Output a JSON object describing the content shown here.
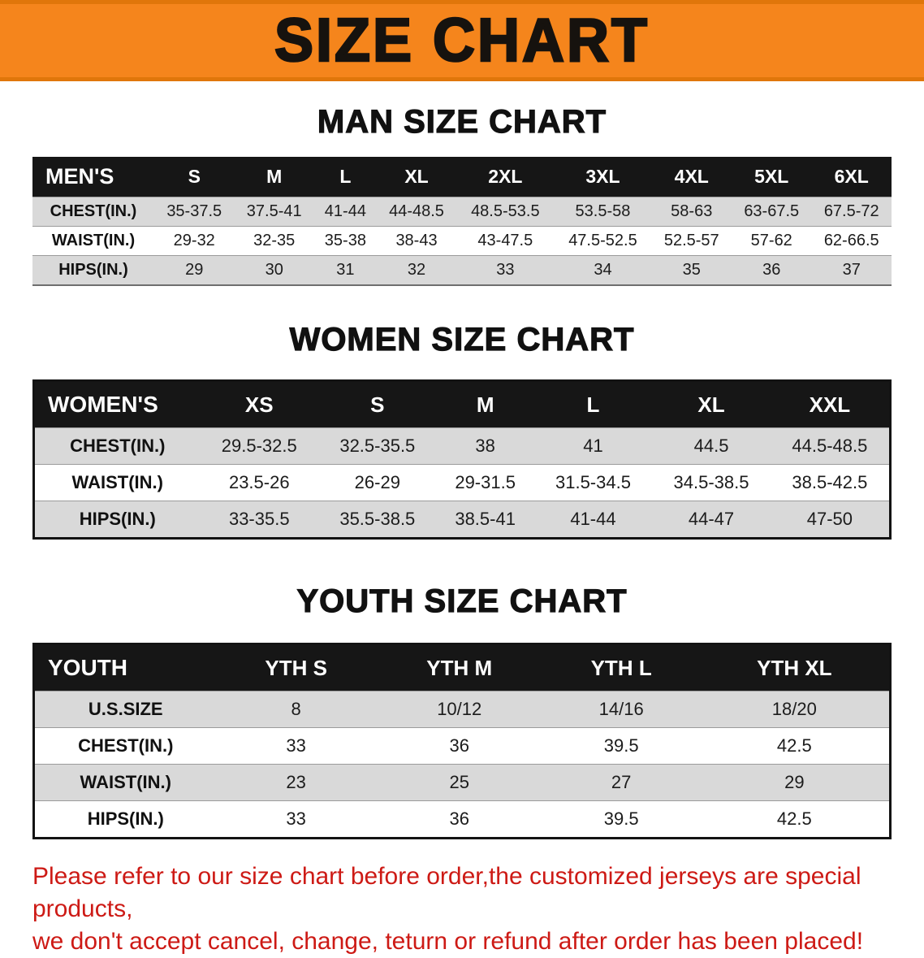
{
  "banner": {
    "title": "SIZE CHART"
  },
  "colors": {
    "banner_bg": "#f5851c",
    "table_header_bg": "#161616",
    "row_alt_bg": "#d9d9d9",
    "disclaimer_text": "#cd1a15"
  },
  "men": {
    "heading": "MAN SIZE CHART",
    "header": [
      "MEN'S",
      "S",
      "M",
      "L",
      "XL",
      "2XL",
      "3XL",
      "4XL",
      "5XL",
      "6XL"
    ],
    "rows": [
      {
        "label": "CHEST(IN.)",
        "values": [
          "35-37.5",
          "37.5-41",
          "41-44",
          "44-48.5",
          "48.5-53.5",
          "53.5-58",
          "58-63",
          "63-67.5",
          "67.5-72"
        ]
      },
      {
        "label": "WAIST(IN.)",
        "values": [
          "29-32",
          "32-35",
          "35-38",
          "38-43",
          "43-47.5",
          "47.5-52.5",
          "52.5-57",
          "57-62",
          "62-66.5"
        ]
      },
      {
        "label": "HIPS(IN.)",
        "values": [
          "29",
          "30",
          "31",
          "32",
          "33",
          "34",
          "35",
          "36",
          "37"
        ]
      }
    ]
  },
  "women": {
    "heading": "WOMEN SIZE CHART",
    "header": [
      "WOMEN'S",
      "XS",
      "S",
      "M",
      "L",
      "XL",
      "XXL"
    ],
    "rows": [
      {
        "label": "CHEST(IN.)",
        "values": [
          "29.5-32.5",
          "32.5-35.5",
          "38",
          "41",
          "44.5",
          "44.5-48.5"
        ]
      },
      {
        "label": "WAIST(IN.)",
        "values": [
          "23.5-26",
          "26-29",
          "29-31.5",
          "31.5-34.5",
          "34.5-38.5",
          "38.5-42.5"
        ]
      },
      {
        "label": "HIPS(IN.)",
        "values": [
          "33-35.5",
          "35.5-38.5",
          "38.5-41",
          "41-44",
          "44-47",
          "47-50"
        ]
      }
    ]
  },
  "youth": {
    "heading": "YOUTH SIZE CHART",
    "header": [
      "YOUTH",
      "YTH S",
      "YTH M",
      "YTH L",
      "YTH XL"
    ],
    "rows": [
      {
        "label": "U.S.SIZE",
        "values": [
          "8",
          "10/12",
          "14/16",
          "18/20"
        ]
      },
      {
        "label": "CHEST(IN.)",
        "values": [
          "33",
          "36",
          "39.5",
          "42.5"
        ]
      },
      {
        "label": "WAIST(IN.)",
        "values": [
          "23",
          "25",
          "27",
          "29"
        ]
      },
      {
        "label": "HIPS(IN.)",
        "values": [
          "33",
          "36",
          "39.5",
          "42.5"
        ]
      }
    ]
  },
  "disclaimer": {
    "line1": "Please refer to our size chart before order,the customized jerseys are special products,",
    "line2": "we don't accept cancel, change, teturn or refund after order has been placed!"
  }
}
